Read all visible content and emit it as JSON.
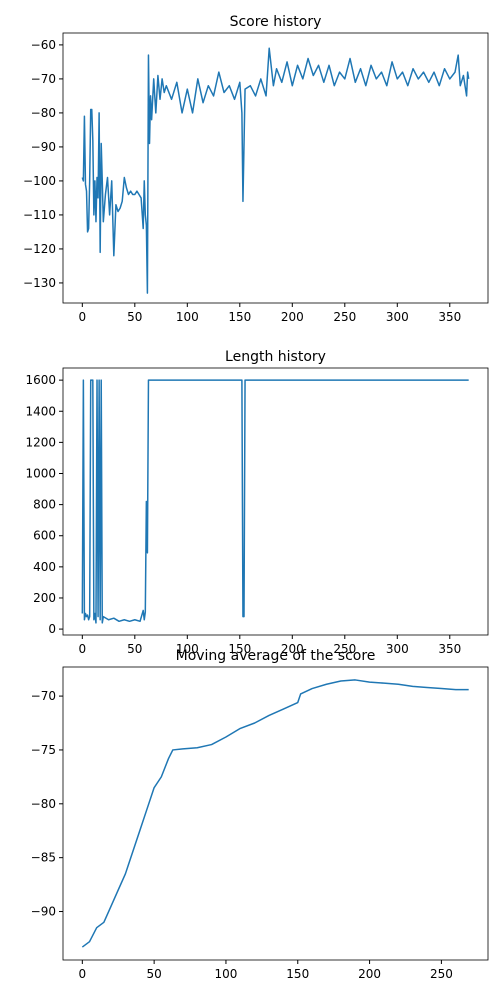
{
  "chart_data": [
    {
      "type": "line",
      "title": "Score history",
      "x": [
        0,
        1,
        2,
        3,
        4,
        5,
        6,
        7,
        8,
        9,
        10,
        11,
        12,
        13,
        14,
        15,
        16,
        17,
        18,
        19,
        20,
        22,
        24,
        26,
        28,
        30,
        32,
        34,
        36,
        38,
        40,
        42,
        44,
        46,
        48,
        50,
        52,
        54,
        56,
        58,
        59,
        60,
        61,
        62,
        63,
        64,
        65,
        66,
        68,
        70,
        72,
        74,
        76,
        78,
        80,
        85,
        90,
        95,
        100,
        105,
        110,
        115,
        120,
        125,
        130,
        135,
        140,
        145,
        150,
        152,
        153,
        155,
        160,
        165,
        170,
        175,
        178,
        182,
        185,
        190,
        195,
        200,
        205,
        210,
        215,
        220,
        225,
        230,
        235,
        240,
        245,
        250,
        255,
        260,
        265,
        270,
        275,
        280,
        285,
        290,
        295,
        300,
        305,
        310,
        315,
        320,
        325,
        330,
        335,
        340,
        345,
        350,
        355,
        358,
        360,
        363,
        366,
        367,
        368
      ],
      "series": [
        {
          "color": "#1f77b4",
          "values": [
            -99,
            -100,
            -81,
            -101,
            -103,
            -115,
            -114,
            -100,
            -79,
            -79,
            -88,
            -110,
            -100,
            -112,
            -99,
            -105,
            -80,
            -121,
            -89,
            -100,
            -112,
            -104,
            -99,
            -110,
            -100,
            -122,
            -107,
            -109,
            -108,
            -106,
            -99,
            -102,
            -104,
            -103,
            -104,
            -104,
            -103,
            -104,
            -105,
            -114,
            -100,
            -110,
            -113,
            -133,
            -63,
            -89,
            -75,
            -82,
            -70,
            -80,
            -69,
            -76,
            -70,
            -74,
            -72,
            -76,
            -71,
            -80,
            -73,
            -80,
            -70,
            -77,
            -72,
            -75,
            -68,
            -74,
            -72,
            -76,
            -71,
            -80,
            -106,
            -73,
            -72,
            -75,
            -70,
            -75,
            -61,
            -72,
            -67,
            -71,
            -65,
            -72,
            -66,
            -70,
            -64,
            -69,
            -66,
            -71,
            -66,
            -72,
            -68,
            -70,
            -64,
            -71,
            -67,
            -72,
            -66,
            -70,
            -68,
            -72,
            -65,
            -70,
            -68,
            -72,
            -67,
            -70,
            -68,
            -71,
            -68,
            -72,
            -67,
            -70,
            -68,
            -63,
            -72,
            -69,
            -75,
            -68,
            -70
          ]
        }
      ],
      "xlim": [
        -18.4,
        386.4
      ],
      "ylim": [
        -135.9,
        -56.5
      ],
      "xticks": [
        0,
        50,
        100,
        150,
        200,
        250,
        300,
        350
      ],
      "yticks": [
        {
          "value": -130,
          "label": "−130"
        },
        {
          "value": -120,
          "label": "−120"
        },
        {
          "value": -110,
          "label": "−110"
        },
        {
          "value": -100,
          "label": "−100"
        },
        {
          "value": -90,
          "label": "−90"
        },
        {
          "value": -80,
          "label": "−80"
        },
        {
          "value": -70,
          "label": "−70"
        },
        {
          "value": -60,
          "label": "−60"
        }
      ]
    },
    {
      "type": "line",
      "title": "Length history",
      "x": [
        0,
        1,
        2,
        3,
        4,
        5,
        6,
        7,
        8,
        9,
        10,
        11,
        12,
        13,
        14,
        15,
        16,
        17,
        18,
        19,
        20,
        25,
        30,
        35,
        40,
        45,
        50,
        55,
        58,
        59,
        60,
        61,
        62,
        63,
        150,
        152,
        153,
        154,
        155,
        368
      ],
      "series": [
        {
          "color": "#1f77b4",
          "values": [
            100,
            1600,
            60,
            100,
            80,
            90,
            60,
            80,
            1600,
            1600,
            1600,
            60,
            100,
            40,
            1600,
            80,
            1600,
            60,
            1600,
            40,
            80,
            60,
            70,
            50,
            60,
            50,
            60,
            50,
            120,
            60,
            110,
            820,
            490,
            1600,
            1600,
            1600,
            80,
            80,
            1600,
            1600
          ]
        }
      ],
      "xlim": [
        -18.4,
        386.4
      ],
      "ylim": [
        -38,
        1678
      ],
      "xticks": [
        0,
        50,
        100,
        150,
        200,
        250,
        300,
        350
      ],
      "yticks": [
        0,
        200,
        400,
        600,
        800,
        1000,
        1200,
        1400,
        1600
      ]
    },
    {
      "type": "line",
      "title": "Moving average of the score",
      "x": [
        0,
        5,
        10,
        15,
        20,
        25,
        30,
        35,
        40,
        45,
        50,
        55,
        60,
        63,
        70,
        80,
        90,
        100,
        110,
        120,
        130,
        140,
        150,
        152,
        160,
        170,
        180,
        190,
        200,
        210,
        220,
        230,
        240,
        250,
        260,
        269
      ],
      "series": [
        {
          "color": "#1f77b4",
          "values": [
            -93.3,
            -92.8,
            -91.5,
            -91,
            -89.5,
            -88,
            -86.5,
            -84.5,
            -82.5,
            -80.5,
            -78.5,
            -77.5,
            -75.8,
            -75,
            -74.9,
            -74.8,
            -74.5,
            -73.8,
            -73,
            -72.5,
            -71.8,
            -71.2,
            -70.6,
            -69.8,
            -69.3,
            -68.9,
            -68.6,
            -68.5,
            -68.7,
            -68.8,
            -68.9,
            -69.1,
            -69.2,
            -69.3,
            -69.4,
            -69.4
          ]
        }
      ],
      "xlim": [
        -13.45,
        282.45
      ],
      "ylim": [
        -94.5,
        -67.3
      ],
      "xticks": [
        0,
        50,
        100,
        150,
        200,
        250
      ],
      "yticks": [
        {
          "value": -90,
          "label": "−90"
        },
        {
          "value": -85,
          "label": "−85"
        },
        {
          "value": -80,
          "label": "−80"
        },
        {
          "value": -75,
          "label": "−75"
        },
        {
          "value": -70,
          "label": "−70"
        }
      ]
    }
  ]
}
